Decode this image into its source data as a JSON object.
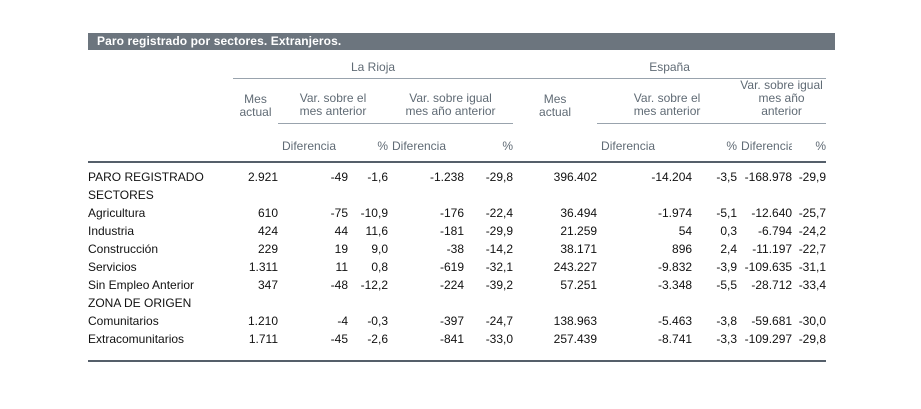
{
  "title_bar": {
    "text": "Paro registrado por sectores. Extranjeros."
  },
  "colors": {
    "title_bar_bg": "#6c757e",
    "title_bar_text": "#ffffff",
    "header_text": "#606b75",
    "thin_rule": "#99a3ad",
    "thick_rule": "#555f6a",
    "data_text": "#111111"
  },
  "table": {
    "regions": [
      "La Rioja",
      "España"
    ],
    "headers": {
      "mes_actual": "Mes\nactual",
      "var_mes_anterior": "Var. sobre el\nmes anterior",
      "var_igual_mes": "Var. sobre igual\nmes año anterior",
      "diferencia": "Diferencia",
      "pct": "%"
    },
    "rows": [
      {
        "label": "PARO REGISTRADO",
        "section": false,
        "cells": [
          "2.921",
          "-49",
          "-1,6",
          "-1.238",
          "-29,8",
          "396.402",
          "-14.204",
          "-3,5",
          "-168.978",
          "-29,9"
        ]
      },
      {
        "label": "SECTORES",
        "section": true,
        "cells": []
      },
      {
        "label": "Agricultura",
        "section": false,
        "cells": [
          "610",
          "-75",
          "-10,9",
          "-176",
          "-22,4",
          "36.494",
          "-1.974",
          "-5,1",
          "-12.640",
          "-25,7"
        ]
      },
      {
        "label": "Industria",
        "section": false,
        "cells": [
          "424",
          "44",
          "11,6",
          "-181",
          "-29,9",
          "21.259",
          "54",
          "0,3",
          "-6.794",
          "-24,2"
        ]
      },
      {
        "label": "Construcción",
        "section": false,
        "cells": [
          "229",
          "19",
          "9,0",
          "-38",
          "-14,2",
          "38.171",
          "896",
          "2,4",
          "-11.197",
          "-22,7"
        ]
      },
      {
        "label": "Servicios",
        "section": false,
        "cells": [
          "1.311",
          "11",
          "0,8",
          "-619",
          "-32,1",
          "243.227",
          "-9.832",
          "-3,9",
          "-109.635",
          "-31,1"
        ]
      },
      {
        "label": "Sin Empleo Anterior",
        "section": false,
        "cells": [
          "347",
          "-48",
          "-12,2",
          "-224",
          "-39,2",
          "57.251",
          "-3.348",
          "-5,5",
          "-28.712",
          "-33,4"
        ]
      },
      {
        "label": "ZONA DE ORIGEN",
        "section": true,
        "cells": []
      },
      {
        "label": "Comunitarios",
        "section": false,
        "cells": [
          "1.210",
          "-4",
          "-0,3",
          "-397",
          "-24,7",
          "138.963",
          "-5.463",
          "-3,8",
          "-59.681",
          "-30,0"
        ]
      },
      {
        "label": "Extracomunitarios",
        "section": false,
        "cells": [
          "1.711",
          "-45",
          "-2,6",
          "-841",
          "-33,0",
          "257.439",
          "-8.741",
          "-3,3",
          "-109.297",
          "-29,8"
        ]
      }
    ]
  }
}
